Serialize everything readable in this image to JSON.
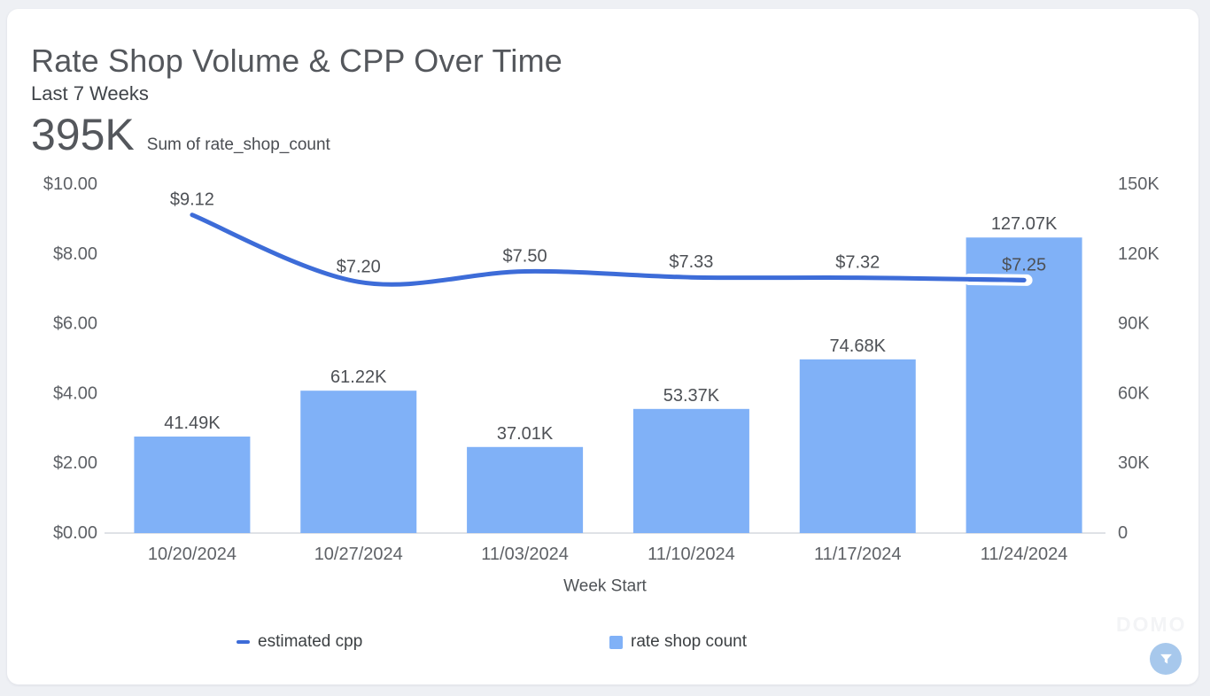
{
  "card": {
    "title": "Rate Shop Volume & CPP Over Time",
    "subtitle": "Last 7 Weeks",
    "summary_value": "395K",
    "summary_label": "Sum of rate_shop_count"
  },
  "chart_data": {
    "type": "combo",
    "categories": [
      "10/20/2024",
      "10/27/2024",
      "11/03/2024",
      "11/10/2024",
      "11/17/2024",
      "11/24/2024"
    ],
    "xlabel": "Week Start",
    "series": [
      {
        "name": "estimated cpp",
        "type": "line",
        "axis": "left",
        "color": "#3d6cd8",
        "values": [
          9.12,
          7.2,
          7.5,
          7.33,
          7.32,
          7.25
        ],
        "labels": [
          "$9.12",
          "$7.20",
          "$7.50",
          "$7.33",
          "$7.32",
          "$7.25"
        ]
      },
      {
        "name": "rate shop count",
        "type": "bar",
        "axis": "right",
        "color": "#80b1f7",
        "values": [
          41490,
          61220,
          37010,
          53370,
          74680,
          127070
        ],
        "labels": [
          "41.49K",
          "61.22K",
          "37.01K",
          "53.37K",
          "74.68K",
          "127.07K"
        ]
      }
    ],
    "left_axis": {
      "min": 0,
      "max": 10,
      "tick_values": [
        0,
        2,
        4,
        6,
        8,
        10
      ],
      "tick_labels": [
        "$0.00",
        "$2.00",
        "$4.00",
        "$6.00",
        "$8.00",
        "$10.00"
      ]
    },
    "right_axis": {
      "min": 0,
      "max": 150000,
      "tick_values": [
        0,
        30000,
        60000,
        90000,
        120000,
        150000
      ],
      "tick_labels": [
        "0",
        "30K",
        "60K",
        "90K",
        "120K",
        "150K"
      ]
    },
    "legend_position": "bottom",
    "grid": false
  },
  "watermark": "DOMO",
  "filter_button": {
    "icon": "funnel-icon"
  },
  "colors": {
    "page_background": "#eef0f4",
    "card_background": "#ffffff",
    "line_series": "#3d6cd8",
    "bar_series": "#80b1f7",
    "axis_text": "#5e6166",
    "data_label_text": "#4d5055",
    "title_text": "#54575c",
    "filter_button_bg": "#a7c8ec"
  }
}
